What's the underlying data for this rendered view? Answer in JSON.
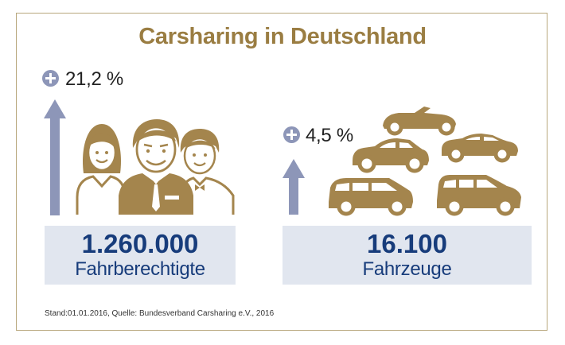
{
  "title": "Carsharing in Deutschland",
  "left": {
    "growth": "21,2 %",
    "value": "1.260.000",
    "label": "Fahrberechtigte",
    "icon": "people-icon"
  },
  "right": {
    "growth": "4,5 %",
    "value": "16.100",
    "label": "Fahrzeuge",
    "icon": "cars-icon"
  },
  "source": "Stand:01.01.2016, Quelle: Bundesverband Carsharing e.V., 2016",
  "colors": {
    "gold": "#9a7d42",
    "arrow": "#8d96b8",
    "box": "#e1e6ef",
    "number": "#173c7b"
  }
}
